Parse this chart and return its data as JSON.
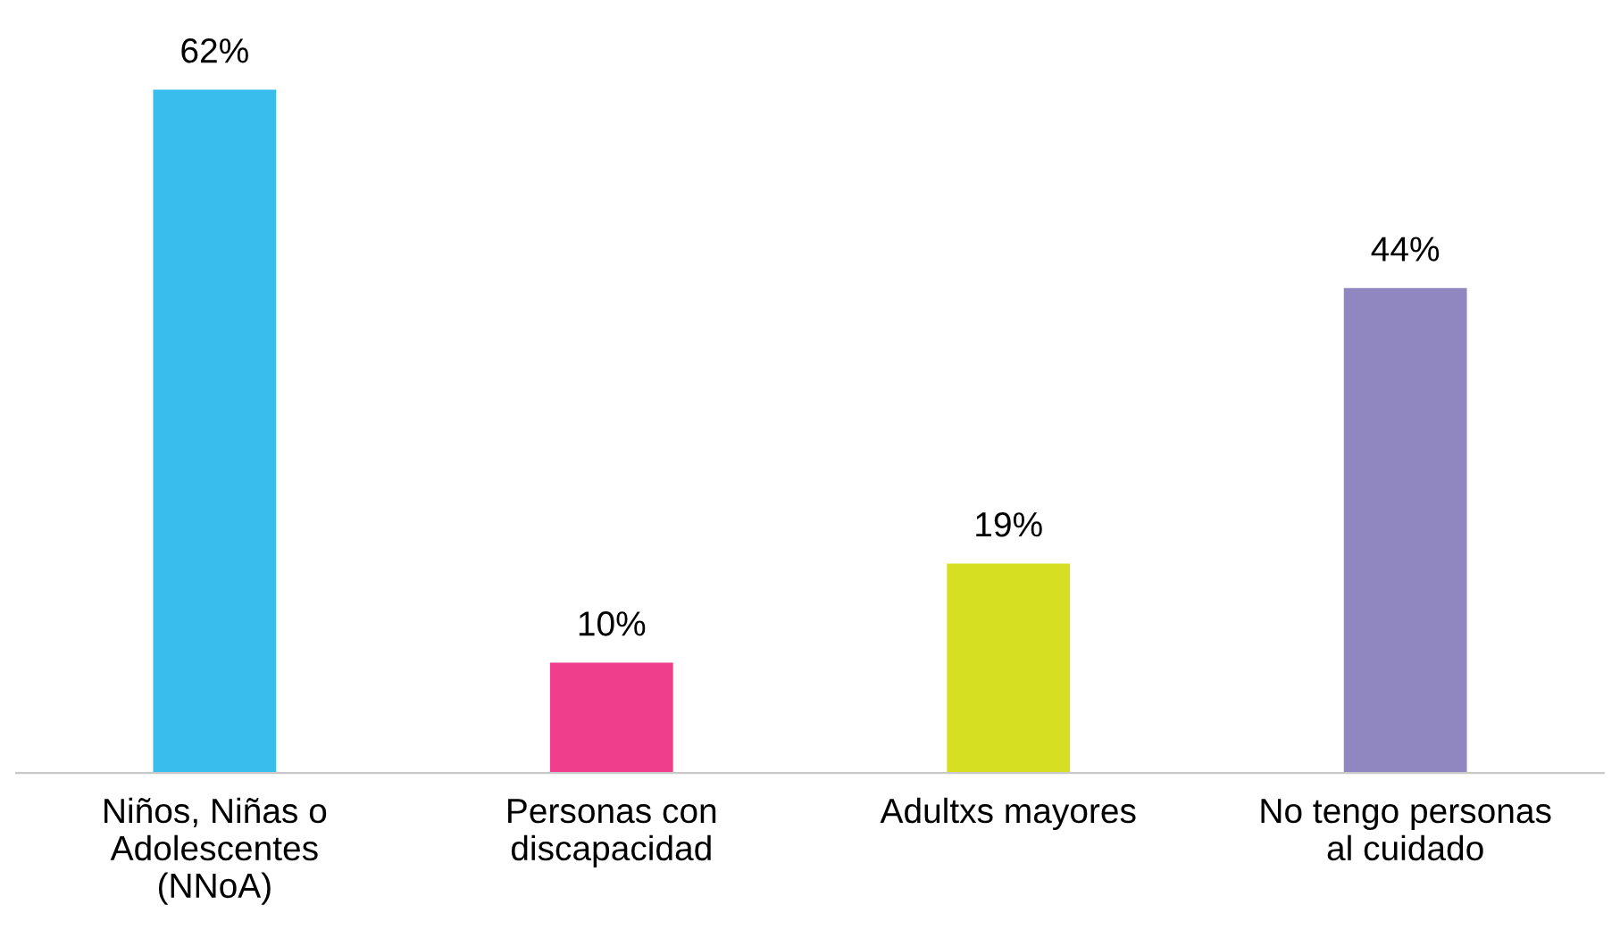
{
  "chart_data": {
    "type": "bar",
    "categories": [
      "Niños, Niñas o\nAdolescentes\n(NNoA)",
      "Personas con\ndiscapacidad",
      "Adultxs mayores",
      "No tengo personas\nal cuidado"
    ],
    "values": [
      62,
      10,
      19,
      44
    ],
    "value_labels": [
      "62%",
      "10%",
      "19%",
      "44%"
    ],
    "colors": [
      "#38bdec",
      "#ee3e8c",
      "#d6df22",
      "#9086c0"
    ],
    "grid": false,
    "legend": false
  }
}
